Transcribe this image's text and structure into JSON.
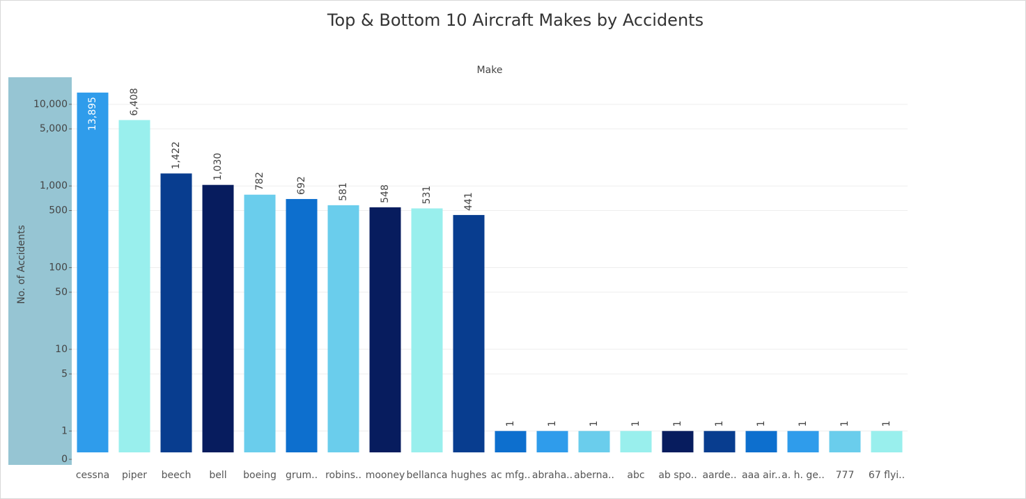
{
  "chart_data": {
    "type": "bar",
    "title": "Top &  Bottom 10 Aircraft Makes by Accidents",
    "x_label": "Make",
    "y_label": "No. of Accidents",
    "categories": [
      "cessna",
      "piper",
      "beech",
      "bell",
      "boeing",
      "grum..",
      "robins..",
      "mooney",
      "bellanca",
      "hughes",
      "ac mfg..",
      "abraha..",
      "aberna..",
      "abc",
      "ab spo..",
      "aarde..",
      "aaa air..",
      "a. h. ge..",
      "777",
      "67 flyi.."
    ],
    "values": [
      13895,
      6408,
      1422,
      1030,
      782,
      692,
      581,
      548,
      531,
      441,
      1,
      1,
      1,
      1,
      1,
      1,
      1,
      1,
      1,
      1
    ],
    "value_labels": [
      "13,895",
      "6,408",
      "1,422",
      "1,030",
      "782",
      "692",
      "581",
      "548",
      "531",
      "441",
      "1",
      "1",
      "1",
      "1",
      "1",
      "1",
      "1",
      "1",
      "1",
      "1"
    ],
    "colors": [
      "#2f9ceb",
      "#99efed",
      "#083d8f",
      "#071c5e",
      "#6acdec",
      "#0d6fce",
      "#6acdec",
      "#071c5e",
      "#99efed",
      "#083d8f",
      "#0d6fce",
      "#2f9ceb",
      "#6acdec",
      "#99efed",
      "#071c5e",
      "#083d8f",
      "#0d6fce",
      "#2f9ceb",
      "#6acdec",
      "#99efed"
    ],
    "log_scale": true,
    "ylim": [
      0.45,
      21000
    ],
    "yticks": [
      0,
      1,
      5,
      10,
      50,
      100,
      500,
      {
        "value": 1000,
        "label": "1,000"
      },
      {
        "value": 5000,
        "label": "5,000"
      },
      {
        "value": 10000,
        "label": "10,000"
      }
    ],
    "grid": true
  }
}
